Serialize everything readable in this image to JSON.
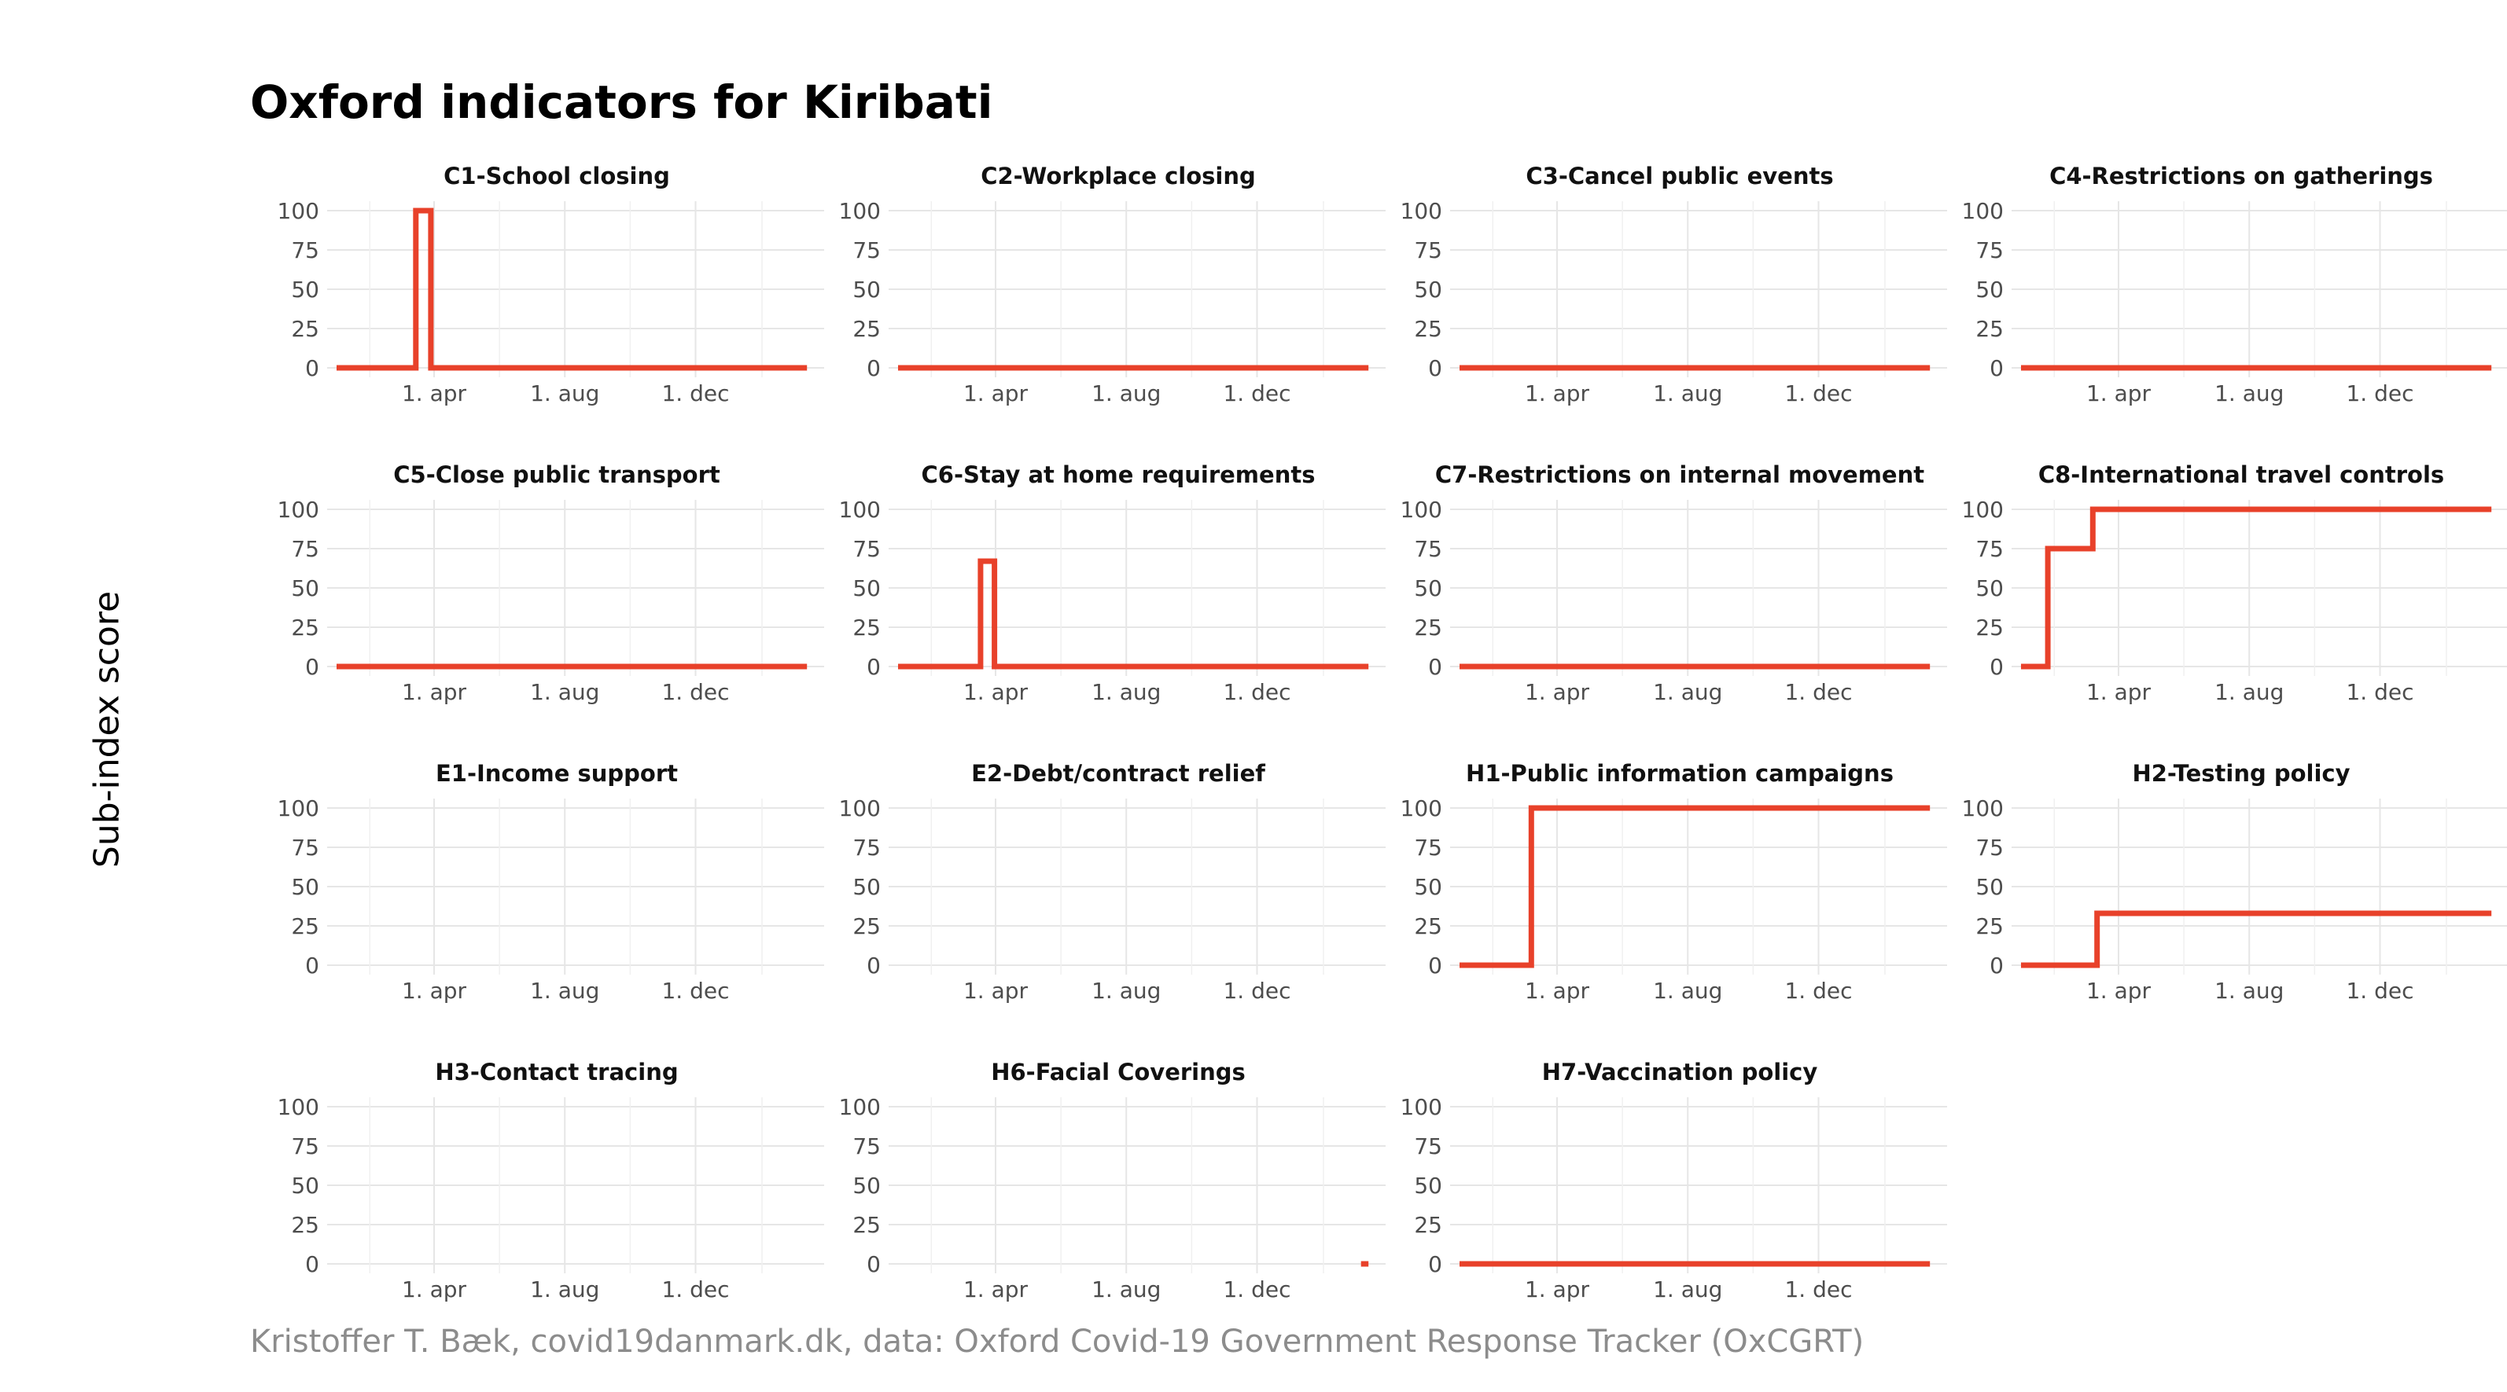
{
  "title": "Oxford indicators for Kiribati",
  "y_axis_label": "Sub-index score",
  "caption": "Kristoffer T. Bæk, covid19danmark.dk, data: Oxford Covid-19 Government Response Tracker (OxCGRT)",
  "colors": {
    "line": "#e8412a",
    "grid": "#e6e6e6",
    "axis_text": "#4d4d4d",
    "caption": "#8c8c8c"
  },
  "chart_data": [
    {
      "type": "line",
      "title": "C1-School closing",
      "yticks": [
        0,
        25,
        50,
        75,
        100
      ],
      "xticks": [
        "1. apr",
        "1. aug",
        "1. dec"
      ],
      "ylim": [
        0,
        100
      ],
      "series": [
        {
          "x": [
            "2020-01-01",
            "2020-03-15",
            "2020-03-15",
            "2020-03-29",
            "2020-03-29",
            "2021-03-15"
          ],
          "values": [
            0,
            0,
            100,
            100,
            0,
            0
          ]
        }
      ]
    },
    {
      "type": "line",
      "title": "C2-Workplace closing",
      "yticks": [
        0,
        25,
        50,
        75,
        100
      ],
      "xticks": [
        "1. apr",
        "1. aug",
        "1. dec"
      ],
      "ylim": [
        0,
        100
      ],
      "series": [
        {
          "x": [
            "2020-01-01",
            "2021-03-15"
          ],
          "values": [
            0,
            0
          ]
        }
      ]
    },
    {
      "type": "line",
      "title": "C3-Cancel public events",
      "yticks": [
        0,
        25,
        50,
        75,
        100
      ],
      "xticks": [
        "1. apr",
        "1. aug",
        "1. dec"
      ],
      "ylim": [
        0,
        100
      ],
      "series": [
        {
          "x": [
            "2020-01-01",
            "2021-03-15"
          ],
          "values": [
            0,
            0
          ]
        }
      ]
    },
    {
      "type": "line",
      "title": "C4-Restrictions on gatherings",
      "yticks": [
        0,
        25,
        50,
        75,
        100
      ],
      "xticks": [
        "1. apr",
        "1. aug",
        "1. dec"
      ],
      "ylim": [
        0,
        100
      ],
      "series": [
        {
          "x": [
            "2020-01-01",
            "2021-03-15"
          ],
          "values": [
            0,
            0
          ]
        }
      ]
    },
    {
      "type": "line",
      "title": "C5-Close public transport",
      "yticks": [
        0,
        25,
        50,
        75,
        100
      ],
      "xticks": [
        "1. apr",
        "1. aug",
        "1. dec"
      ],
      "ylim": [
        0,
        100
      ],
      "series": [
        {
          "x": [
            "2020-01-01",
            "2021-03-15"
          ],
          "values": [
            0,
            0
          ]
        }
      ]
    },
    {
      "type": "line",
      "title": "C6-Stay at home requirements",
      "yticks": [
        0,
        25,
        50,
        75,
        100
      ],
      "xticks": [
        "1. apr",
        "1. aug",
        "1. dec"
      ],
      "ylim": [
        0,
        100
      ],
      "series": [
        {
          "x": [
            "2020-01-01",
            "2020-03-18",
            "2020-03-18",
            "2020-03-31",
            "2020-03-31",
            "2021-03-15"
          ],
          "values": [
            0,
            0,
            67,
            67,
            0,
            0
          ]
        }
      ]
    },
    {
      "type": "line",
      "title": "C7-Restrictions on internal movement",
      "yticks": [
        0,
        25,
        50,
        75,
        100
      ],
      "xticks": [
        "1. apr",
        "1. aug",
        "1. dec"
      ],
      "ylim": [
        0,
        100
      ],
      "series": [
        {
          "x": [
            "2020-01-01",
            "2021-03-15"
          ],
          "values": [
            0,
            0
          ]
        }
      ]
    },
    {
      "type": "line",
      "title": "C8-International travel controls",
      "yticks": [
        0,
        25,
        50,
        75,
        100
      ],
      "xticks": [
        "1. apr",
        "1. aug",
        "1. dec"
      ],
      "ylim": [
        0,
        100
      ],
      "series": [
        {
          "x": [
            "2020-01-01",
            "2020-01-26",
            "2020-01-26",
            "2020-03-08",
            "2020-03-08",
            "2021-03-15"
          ],
          "values": [
            0,
            0,
            75,
            75,
            100,
            100
          ]
        }
      ]
    },
    {
      "type": "line",
      "title": "E1-Income support",
      "yticks": [
        0,
        25,
        50,
        75,
        100
      ],
      "xticks": [
        "1. apr",
        "1. aug",
        "1. dec"
      ],
      "ylim": [
        0,
        100
      ],
      "series": []
    },
    {
      "type": "line",
      "title": "E2-Debt/contract relief",
      "yticks": [
        0,
        25,
        50,
        75,
        100
      ],
      "xticks": [
        "1. apr",
        "1. aug",
        "1. dec"
      ],
      "ylim": [
        0,
        100
      ],
      "series": []
    },
    {
      "type": "line",
      "title": "H1-Public information campaigns",
      "yticks": [
        0,
        25,
        50,
        75,
        100
      ],
      "xticks": [
        "1. apr",
        "1. aug",
        "1. dec"
      ],
      "ylim": [
        0,
        100
      ],
      "series": [
        {
          "x": [
            "2020-01-01",
            "2020-03-08",
            "2020-03-08",
            "2021-03-15"
          ],
          "values": [
            0,
            0,
            100,
            100
          ]
        }
      ]
    },
    {
      "type": "line",
      "title": "H2-Testing policy",
      "yticks": [
        0,
        25,
        50,
        75,
        100
      ],
      "xticks": [
        "1. apr",
        "1. aug",
        "1. dec"
      ],
      "ylim": [
        0,
        100
      ],
      "series": [
        {
          "x": [
            "2020-01-01",
            "2020-03-12",
            "2020-03-12",
            "2021-03-15"
          ],
          "values": [
            0,
            0,
            33,
            33
          ]
        }
      ]
    },
    {
      "type": "line",
      "title": "H3-Contact tracing",
      "yticks": [
        0,
        25,
        50,
        75,
        100
      ],
      "xticks": [
        "1. apr",
        "1. aug",
        "1. dec"
      ],
      "ylim": [
        0,
        100
      ],
      "series": []
    },
    {
      "type": "line",
      "title": "H6-Facial Coverings",
      "yticks": [
        0,
        25,
        50,
        75,
        100
      ],
      "xticks": [
        "1. apr",
        "1. aug",
        "1. dec"
      ],
      "ylim": [
        0,
        100
      ],
      "series": [
        {
          "x": [
            "2021-03-08",
            "2021-03-15"
          ],
          "values": [
            0,
            0
          ]
        }
      ]
    },
    {
      "type": "line",
      "title": "H7-Vaccination policy",
      "yticks": [
        0,
        25,
        50,
        75,
        100
      ],
      "xticks": [
        "1. apr",
        "1. aug",
        "1. dec"
      ],
      "ylim": [
        0,
        100
      ],
      "series": [
        {
          "x": [
            "2020-01-01",
            "2021-03-15"
          ],
          "values": [
            0,
            0
          ]
        }
      ]
    }
  ]
}
